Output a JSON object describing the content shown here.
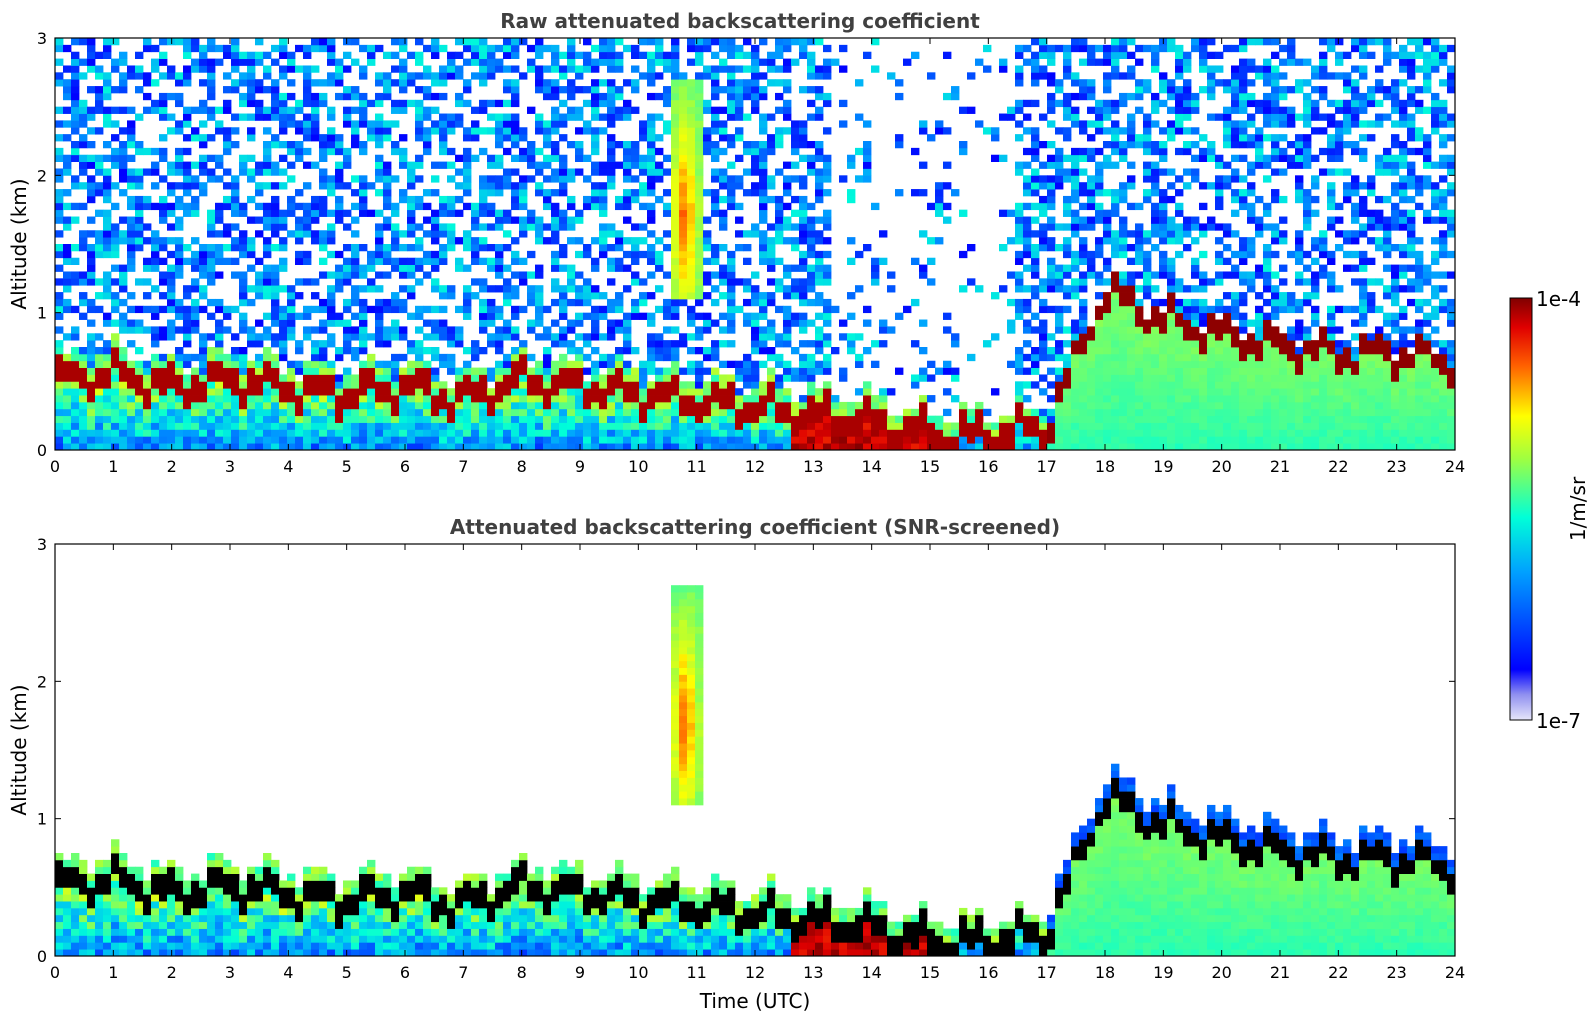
{
  "chart_data": [
    {
      "type": "heatmap",
      "title": "Raw attenuated backscattering coefficient",
      "xlabel": "",
      "ylabel": "Altitude (km)",
      "xlim": [
        0,
        24
      ],
      "ylim": [
        0,
        3
      ],
      "xticks": [
        "0",
        "1",
        "2",
        "3",
        "4",
        "5",
        "6",
        "7",
        "8",
        "9",
        "10",
        "11",
        "12",
        "13",
        "14",
        "15",
        "16",
        "17",
        "18",
        "19",
        "20",
        "21",
        "22",
        "23",
        "24"
      ],
      "yticks": [
        "0",
        "1",
        "2",
        "3"
      ],
      "mode": "raw",
      "features": {
        "boundary_layer_top_km": [
          [
            0,
            0.55
          ],
          [
            1,
            0.6
          ],
          [
            2,
            0.5
          ],
          [
            3,
            0.55
          ],
          [
            4,
            0.5
          ],
          [
            5,
            0.45
          ],
          [
            6,
            0.5
          ],
          [
            7,
            0.4
          ],
          [
            8,
            0.55
          ],
          [
            9,
            0.5
          ],
          [
            10,
            0.45
          ],
          [
            11,
            0.4
          ],
          [
            12,
            0.35
          ],
          [
            13,
            0.3
          ],
          [
            14,
            0.25
          ],
          [
            15,
            0.15
          ],
          [
            16,
            0.15
          ],
          [
            17,
            0.2
          ],
          [
            18,
            1.2
          ],
          [
            19,
            1.0
          ],
          [
            20,
            0.9
          ],
          [
            21,
            0.8
          ],
          [
            22,
            0.75
          ],
          [
            23,
            0.75
          ],
          [
            24,
            0.7
          ]
        ],
        "cloud_plume": {
          "time_utc": [
            10.5,
            11.1
          ],
          "altitude_km": [
            1.1,
            2.7
          ]
        }
      }
    },
    {
      "type": "heatmap",
      "title": "Attenuated backscattering coefficient (SNR-screened)",
      "xlabel": "Time (UTC)",
      "ylabel": "Altitude (km)",
      "xlim": [
        0,
        24
      ],
      "ylim": [
        0,
        3
      ],
      "xticks": [
        "0",
        "1",
        "2",
        "3",
        "4",
        "5",
        "6",
        "7",
        "8",
        "9",
        "10",
        "11",
        "12",
        "13",
        "14",
        "15",
        "16",
        "17",
        "18",
        "19",
        "20",
        "21",
        "22",
        "23",
        "24"
      ],
      "yticks": [
        "0",
        "1",
        "2",
        "3"
      ],
      "mode": "screened"
    }
  ],
  "colorbar": {
    "label": "1/m/sr",
    "max_label": "1e-4",
    "min_label": "1e-7",
    "colormap": "jet",
    "colors": [
      "#e6e6fa",
      "#0000ff",
      "#00ffff",
      "#ffff00",
      "#ff0000",
      "#800000"
    ]
  }
}
